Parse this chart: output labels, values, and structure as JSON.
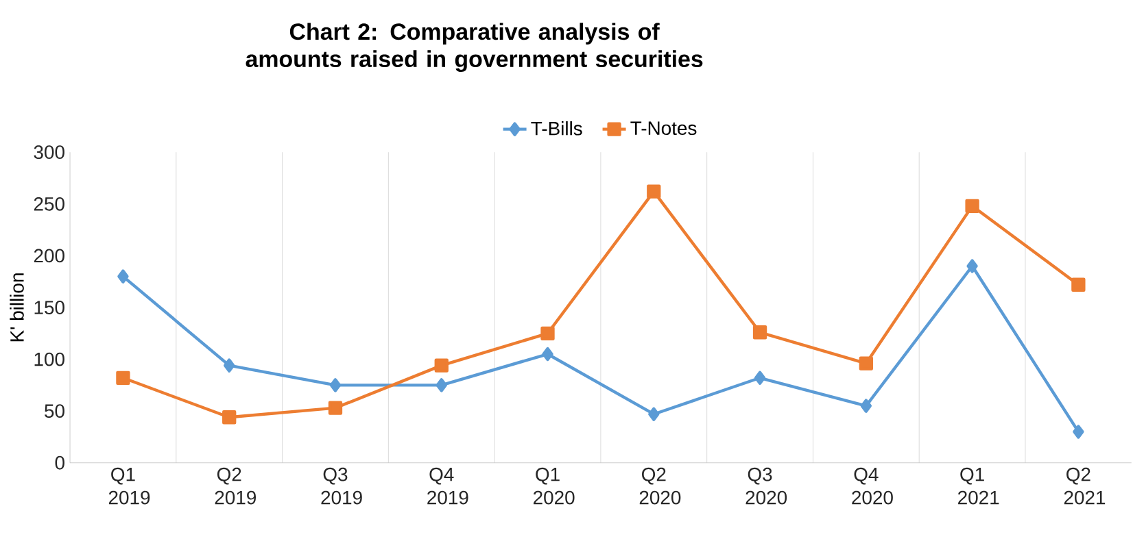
{
  "chart_data": {
    "type": "line",
    "title": "Chart 2: Comparative analysis of amounts raised in government securities",
    "categories": [
      "Q1 2019",
      "Q2 2019",
      "Q3 2019",
      "Q4 2019",
      "Q1 2020",
      "Q2 2020",
      "Q3 2020",
      "Q4 2020",
      "Q1 2021",
      "Q2 2021"
    ],
    "series": [
      {
        "name": "T-Bills",
        "color": "#5b9bd5",
        "marker": "diamond",
        "values": [
          180,
          94,
          75,
          75,
          105,
          47,
          82,
          55,
          190,
          30
        ]
      },
      {
        "name": "T-Notes",
        "color": "#ed7d31",
        "marker": "square",
        "values": [
          82,
          44,
          53,
          94,
          125,
          262,
          126,
          96,
          248,
          172
        ]
      }
    ],
    "ylabel": "K' billion",
    "ylim": [
      0,
      300
    ],
    "yticks": [
      0,
      50,
      100,
      150,
      200,
      250,
      300
    ],
    "grid": "x",
    "legend": "top",
    "line_style": "solid"
  }
}
